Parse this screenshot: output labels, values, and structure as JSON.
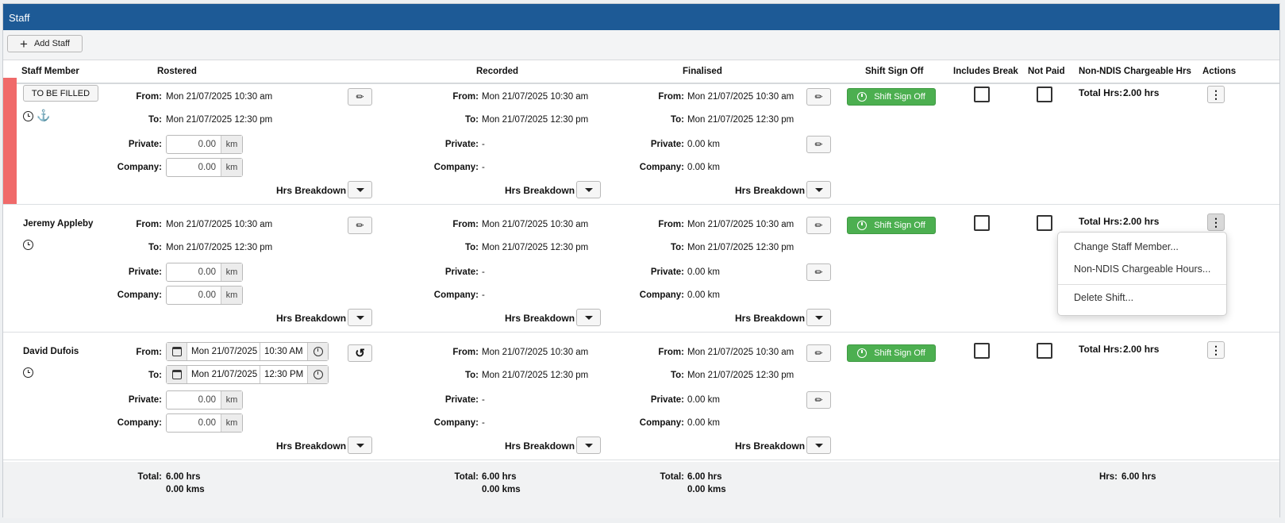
{
  "header": {
    "title": "Staff"
  },
  "toolbar": {
    "add_label": "Add Staff"
  },
  "columns": {
    "staff_member": "Staff Member",
    "rostered": "Rostered",
    "recorded": "Recorded",
    "finalised": "Finalised",
    "shift_sign_off": "Shift Sign Off",
    "includes_break": "Includes Break",
    "not_paid": "Not Paid",
    "non_ndis": "Non-NDIS Chargeable Hrs",
    "actions": "Actions"
  },
  "labels": {
    "from": "From:",
    "to": "To:",
    "private": "Private:",
    "company": "Company:",
    "hrs_breakdown": "Hrs Breakdown",
    "sign_off": "Shift Sign Off",
    "total_hrs": "Total Hrs:",
    "km": "km",
    "dash": "-",
    "total": "Total:",
    "hrs": "Hrs:"
  },
  "rows": [
    {
      "staff": "TO BE FILLED",
      "rostered": {
        "from": "Mon 21/07/2025 10:30 am",
        "to": "Mon 21/07/2025 12:30 pm",
        "private": "0.00",
        "company": "0.00"
      },
      "recorded": {
        "from": "Mon 21/07/2025 10:30 am",
        "to": "Mon 21/07/2025 12:30 pm"
      },
      "finalised": {
        "from": "Mon 21/07/2025 10:30 am",
        "to": "Mon 21/07/2025 12:30 pm",
        "private": "0.00 km",
        "company": "0.00 km"
      },
      "total_hrs": "2.00 hrs"
    },
    {
      "staff": "Jeremy Appleby",
      "rostered": {
        "from": "Mon 21/07/2025 10:30 am",
        "to": "Mon 21/07/2025 12:30 pm",
        "private": "0.00",
        "company": "0.00"
      },
      "recorded": {
        "from": "Mon 21/07/2025 10:30 am",
        "to": "Mon 21/07/2025 12:30 pm"
      },
      "finalised": {
        "from": "Mon 21/07/2025 10:30 am",
        "to": "Mon 21/07/2025 12:30 pm",
        "private": "0.00 km",
        "company": "0.00 km"
      },
      "total_hrs": "2.00 hrs"
    },
    {
      "staff": "David Dufois",
      "rostered": {
        "from_date": "Mon 21/07/2025",
        "from_time": "10:30 AM",
        "to_date": "Mon 21/07/2025",
        "to_time": "12:30 PM",
        "private": "0.00",
        "company": "0.00"
      },
      "recorded": {
        "from": "Mon 21/07/2025 10:30 am",
        "to": "Mon 21/07/2025 12:30 pm"
      },
      "finalised": {
        "from": "Mon 21/07/2025 10:30 am",
        "to": "Mon 21/07/2025 12:30 pm",
        "private": "0.00 km",
        "company": "0.00 km"
      },
      "total_hrs": "2.00 hrs"
    }
  ],
  "totals": {
    "rostered_hrs": "6.00 hrs",
    "rostered_kms": "0.00 kms",
    "recorded_hrs": "6.00 hrs",
    "recorded_kms": "0.00 kms",
    "finalised_hrs": "6.00 hrs",
    "finalised_kms": "0.00 kms",
    "non_ndis_hrs": "6.00 hrs"
  },
  "menu": {
    "change_staff": "Change Staff Member...",
    "non_ndis_hours": "Non-NDIS Chargeable Hours...",
    "delete_shift": "Delete Shift..."
  },
  "colors": {
    "header": "#1d5a96",
    "signoff": "#4caf50",
    "unfilled_flag": "#f06a6a"
  }
}
